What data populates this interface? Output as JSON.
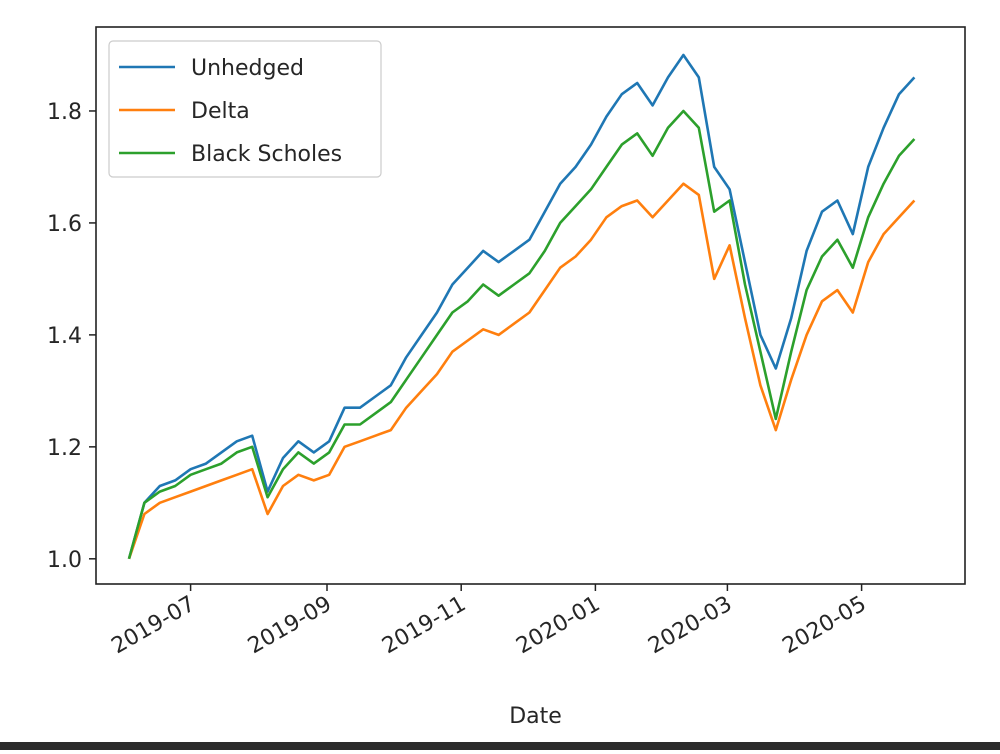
{
  "chart_data": {
    "type": "line",
    "xlabel": "Date",
    "ylabel": "",
    "x_tick_labels": [
      "2019-07",
      "2019-09",
      "2019-11",
      "2020-01",
      "2020-03",
      "2020-05"
    ],
    "x_ticks": [
      "2019-07-01",
      "2019-09-01",
      "2019-11-01",
      "2020-01-01",
      "2020-03-01",
      "2020-05-01"
    ],
    "y_tick_labels": [
      "1.0",
      "1.2",
      "1.4",
      "1.6",
      "1.8"
    ],
    "y_ticks": [
      1.0,
      1.2,
      1.4,
      1.6,
      1.8
    ],
    "xlim": [
      "2019-05-19",
      "2020-06-17"
    ],
    "ylim": [
      0.955,
      1.95
    ],
    "grid": false,
    "legend": "top-left",
    "dates": [
      "2019-06-03",
      "2019-06-10",
      "2019-06-17",
      "2019-06-24",
      "2019-07-01",
      "2019-07-08",
      "2019-07-15",
      "2019-07-22",
      "2019-07-29",
      "2019-08-05",
      "2019-08-12",
      "2019-08-19",
      "2019-08-26",
      "2019-09-02",
      "2019-09-09",
      "2019-09-16",
      "2019-09-23",
      "2019-09-30",
      "2019-10-07",
      "2019-10-14",
      "2019-10-21",
      "2019-10-28",
      "2019-11-04",
      "2019-11-11",
      "2019-11-18",
      "2019-11-25",
      "2019-12-02",
      "2019-12-09",
      "2019-12-16",
      "2019-12-23",
      "2019-12-30",
      "2020-01-06",
      "2020-01-13",
      "2020-01-20",
      "2020-01-27",
      "2020-02-03",
      "2020-02-10",
      "2020-02-17",
      "2020-02-24",
      "2020-03-02",
      "2020-03-09",
      "2020-03-16",
      "2020-03-23",
      "2020-03-30",
      "2020-04-06",
      "2020-04-13",
      "2020-04-20",
      "2020-04-27",
      "2020-05-04",
      "2020-05-11",
      "2020-05-18",
      "2020-05-25"
    ],
    "series": [
      {
        "name": "Unhedged",
        "color": "#1f77b4",
        "values": [
          1.0,
          1.1,
          1.13,
          1.14,
          1.16,
          1.17,
          1.19,
          1.21,
          1.22,
          1.12,
          1.18,
          1.21,
          1.19,
          1.21,
          1.27,
          1.27,
          1.29,
          1.31,
          1.36,
          1.4,
          1.44,
          1.49,
          1.52,
          1.55,
          1.53,
          1.55,
          1.57,
          1.62,
          1.67,
          1.7,
          1.74,
          1.79,
          1.83,
          1.85,
          1.81,
          1.86,
          1.9,
          1.86,
          1.7,
          1.66,
          1.53,
          1.4,
          1.34,
          1.43,
          1.55,
          1.62,
          1.64,
          1.58,
          1.7,
          1.77,
          1.83,
          1.86
        ]
      },
      {
        "name": "Delta",
        "color": "#ff7f0e",
        "values": [
          1.0,
          1.08,
          1.1,
          1.11,
          1.12,
          1.13,
          1.14,
          1.15,
          1.16,
          1.08,
          1.13,
          1.15,
          1.14,
          1.15,
          1.2,
          1.21,
          1.22,
          1.23,
          1.27,
          1.3,
          1.33,
          1.37,
          1.39,
          1.41,
          1.4,
          1.42,
          1.44,
          1.48,
          1.52,
          1.54,
          1.57,
          1.61,
          1.63,
          1.64,
          1.61,
          1.64,
          1.67,
          1.65,
          1.5,
          1.56,
          1.43,
          1.31,
          1.23,
          1.32,
          1.4,
          1.46,
          1.48,
          1.44,
          1.53,
          1.58,
          1.61,
          1.64
        ]
      },
      {
        "name": "Black Scholes",
        "color": "#2ca02c",
        "values": [
          1.0,
          1.1,
          1.12,
          1.13,
          1.15,
          1.16,
          1.17,
          1.19,
          1.2,
          1.11,
          1.16,
          1.19,
          1.17,
          1.19,
          1.24,
          1.24,
          1.26,
          1.28,
          1.32,
          1.36,
          1.4,
          1.44,
          1.46,
          1.49,
          1.47,
          1.49,
          1.51,
          1.55,
          1.6,
          1.63,
          1.66,
          1.7,
          1.74,
          1.76,
          1.72,
          1.77,
          1.8,
          1.77,
          1.62,
          1.64,
          1.49,
          1.37,
          1.25,
          1.37,
          1.48,
          1.54,
          1.57,
          1.52,
          1.61,
          1.67,
          1.72,
          1.75
        ]
      }
    ]
  }
}
